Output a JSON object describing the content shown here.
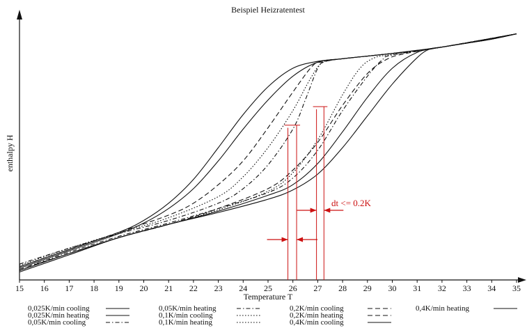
{
  "chart_data": {
    "type": "line",
    "title": "Beispiel Heizratentest",
    "xlabel": "Temperature T",
    "ylabel": "enthalpy H",
    "xlim": [
      15,
      35
    ],
    "xticks": [
      "15",
      "16",
      "17",
      "18",
      "19",
      "20",
      "21",
      "22",
      "23",
      "24",
      "25",
      "26",
      "27",
      "28",
      "29",
      "30",
      "31",
      "32",
      "33",
      "34",
      "35"
    ],
    "yticks_shown": false,
    "grid": false,
    "legend_position": "bottom",
    "y_units": "arbitrary (0 = bottom of plot, 1 = top of plot)",
    "series": [
      {
        "name": "0,025K/min cooling",
        "dash": "solid",
        "points": [
          [
            15,
            0.045
          ],
          [
            17,
            0.11
          ],
          [
            19,
            0.175
          ],
          [
            20,
            0.215
          ],
          [
            21,
            0.27
          ],
          [
            22,
            0.345
          ],
          [
            23,
            0.45
          ],
          [
            24,
            0.57
          ],
          [
            25,
            0.68
          ],
          [
            26,
            0.77
          ],
          [
            27,
            0.823
          ],
          [
            28,
            0.836
          ],
          [
            29,
            0.846
          ],
          [
            30,
            0.856
          ],
          [
            31,
            0.868
          ],
          [
            32,
            0.88
          ],
          [
            33,
            0.895
          ],
          [
            34,
            0.91
          ],
          [
            35,
            0.93
          ]
        ]
      },
      {
        "name": "0,025K/min heating",
        "dash": "solid",
        "points": [
          [
            15,
            0.03
          ],
          [
            17,
            0.095
          ],
          [
            19,
            0.16
          ],
          [
            21,
            0.21
          ],
          [
            23,
            0.255
          ],
          [
            25,
            0.305
          ],
          [
            26,
            0.34
          ],
          [
            27,
            0.4
          ],
          [
            28,
            0.5
          ],
          [
            29,
            0.62
          ],
          [
            30,
            0.74
          ],
          [
            31,
            0.84
          ],
          [
            31.5,
            0.872
          ],
          [
            32,
            0.88
          ],
          [
            33,
            0.895
          ],
          [
            34,
            0.91
          ],
          [
            35,
            0.93
          ]
        ]
      },
      {
        "name": "0,05K/min cooling",
        "dash": "dashdot",
        "points": [
          [
            15,
            0.06
          ],
          [
            17,
            0.12
          ],
          [
            19,
            0.175
          ],
          [
            21,
            0.225
          ],
          [
            23,
            0.29
          ],
          [
            24,
            0.345
          ],
          [
            25,
            0.435
          ],
          [
            26,
            0.57
          ],
          [
            26.5,
            0.68
          ],
          [
            27,
            0.8
          ],
          [
            27.3,
            0.825
          ],
          [
            28,
            0.836
          ],
          [
            30,
            0.856
          ],
          [
            32,
            0.88
          ],
          [
            35,
            0.93
          ]
        ]
      },
      {
        "name": "0,05K/min heating",
        "dash": "dashdot",
        "points": [
          [
            15,
            0.04
          ],
          [
            17,
            0.105
          ],
          [
            19,
            0.165
          ],
          [
            21,
            0.215
          ],
          [
            23,
            0.27
          ],
          [
            25,
            0.33
          ],
          [
            26,
            0.385
          ],
          [
            27,
            0.49
          ],
          [
            28,
            0.64
          ],
          [
            29,
            0.77
          ],
          [
            29.6,
            0.832
          ],
          [
            30,
            0.85
          ],
          [
            32,
            0.88
          ],
          [
            35,
            0.93
          ]
        ]
      },
      {
        "name": "0,1K/min cooling",
        "dash": "dotted",
        "points": [
          [
            15,
            0.055
          ],
          [
            17,
            0.12
          ],
          [
            19,
            0.178
          ],
          [
            21,
            0.235
          ],
          [
            23,
            0.315
          ],
          [
            24,
            0.39
          ],
          [
            25,
            0.5
          ],
          [
            26,
            0.64
          ],
          [
            26.7,
            0.76
          ],
          [
            27.2,
            0.822
          ],
          [
            28,
            0.836
          ],
          [
            30,
            0.856
          ],
          [
            32,
            0.88
          ],
          [
            35,
            0.93
          ]
        ]
      },
      {
        "name": "0,1K/min heating",
        "dash": "dotted",
        "points": [
          [
            15,
            0.035
          ],
          [
            17,
            0.1
          ],
          [
            19,
            0.16
          ],
          [
            21,
            0.21
          ],
          [
            23,
            0.265
          ],
          [
            25,
            0.335
          ],
          [
            26,
            0.405
          ],
          [
            27,
            0.53
          ],
          [
            28,
            0.7
          ],
          [
            28.7,
            0.8
          ],
          [
            29.3,
            0.84
          ],
          [
            30,
            0.852
          ],
          [
            32,
            0.88
          ],
          [
            35,
            0.93
          ]
        ]
      },
      {
        "name": "0,2K/min cooling",
        "dash": "dashed",
        "points": [
          [
            15,
            0.05
          ],
          [
            17,
            0.115
          ],
          [
            19,
            0.18
          ],
          [
            21,
            0.245
          ],
          [
            22,
            0.29
          ],
          [
            23,
            0.36
          ],
          [
            24,
            0.45
          ],
          [
            25,
            0.575
          ],
          [
            26,
            0.71
          ],
          [
            26.8,
            0.81
          ],
          [
            27.2,
            0.824
          ],
          [
            28,
            0.836
          ],
          [
            30,
            0.856
          ],
          [
            32,
            0.88
          ],
          [
            35,
            0.93
          ]
        ]
      },
      {
        "name": "0,2K/min heating",
        "dash": "dashed",
        "points": [
          [
            15,
            0.04
          ],
          [
            17,
            0.1
          ],
          [
            19,
            0.16
          ],
          [
            21,
            0.21
          ],
          [
            23,
            0.27
          ],
          [
            25,
            0.345
          ],
          [
            26,
            0.415
          ],
          [
            27,
            0.52
          ],
          [
            28,
            0.66
          ],
          [
            29,
            0.78
          ],
          [
            29.8,
            0.835
          ],
          [
            30.5,
            0.855
          ],
          [
            32,
            0.88
          ],
          [
            35,
            0.93
          ]
        ]
      },
      {
        "name": "0,4K/min cooling",
        "dash": "solid",
        "points": [
          [
            15,
            0.05
          ],
          [
            17,
            0.115
          ],
          [
            19,
            0.18
          ],
          [
            20,
            0.225
          ],
          [
            21,
            0.29
          ],
          [
            22,
            0.38
          ],
          [
            23,
            0.5
          ],
          [
            24,
            0.625
          ],
          [
            25,
            0.73
          ],
          [
            26,
            0.8
          ],
          [
            27,
            0.826
          ],
          [
            28,
            0.836
          ],
          [
            30,
            0.856
          ],
          [
            32,
            0.88
          ],
          [
            35,
            0.93
          ]
        ]
      },
      {
        "name": "0,4K/min heating",
        "dash": "solid",
        "points": [
          [
            15,
            0.035
          ],
          [
            17,
            0.1
          ],
          [
            19,
            0.16
          ],
          [
            21,
            0.21
          ],
          [
            23,
            0.26
          ],
          [
            25,
            0.32
          ],
          [
            26,
            0.36
          ],
          [
            27,
            0.44
          ],
          [
            28,
            0.56
          ],
          [
            29,
            0.69
          ],
          [
            30,
            0.8
          ],
          [
            31,
            0.86
          ],
          [
            32,
            0.88
          ],
          [
            33,
            0.895
          ],
          [
            34,
            0.91
          ],
          [
            35,
            0.93
          ]
        ]
      }
    ],
    "annotations": [
      {
        "text": "dt <= 0.2K",
        "color": "#cc1111"
      }
    ],
    "markers": {
      "color": "#cc1111",
      "pair_left": {
        "x": [
          25.8,
          26.15
        ],
        "top": [
          0.575,
          0.585
        ]
      },
      "pair_right": {
        "x": [
          26.95,
          27.25
        ],
        "top": [
          0.645,
          0.655
        ]
      }
    }
  }
}
